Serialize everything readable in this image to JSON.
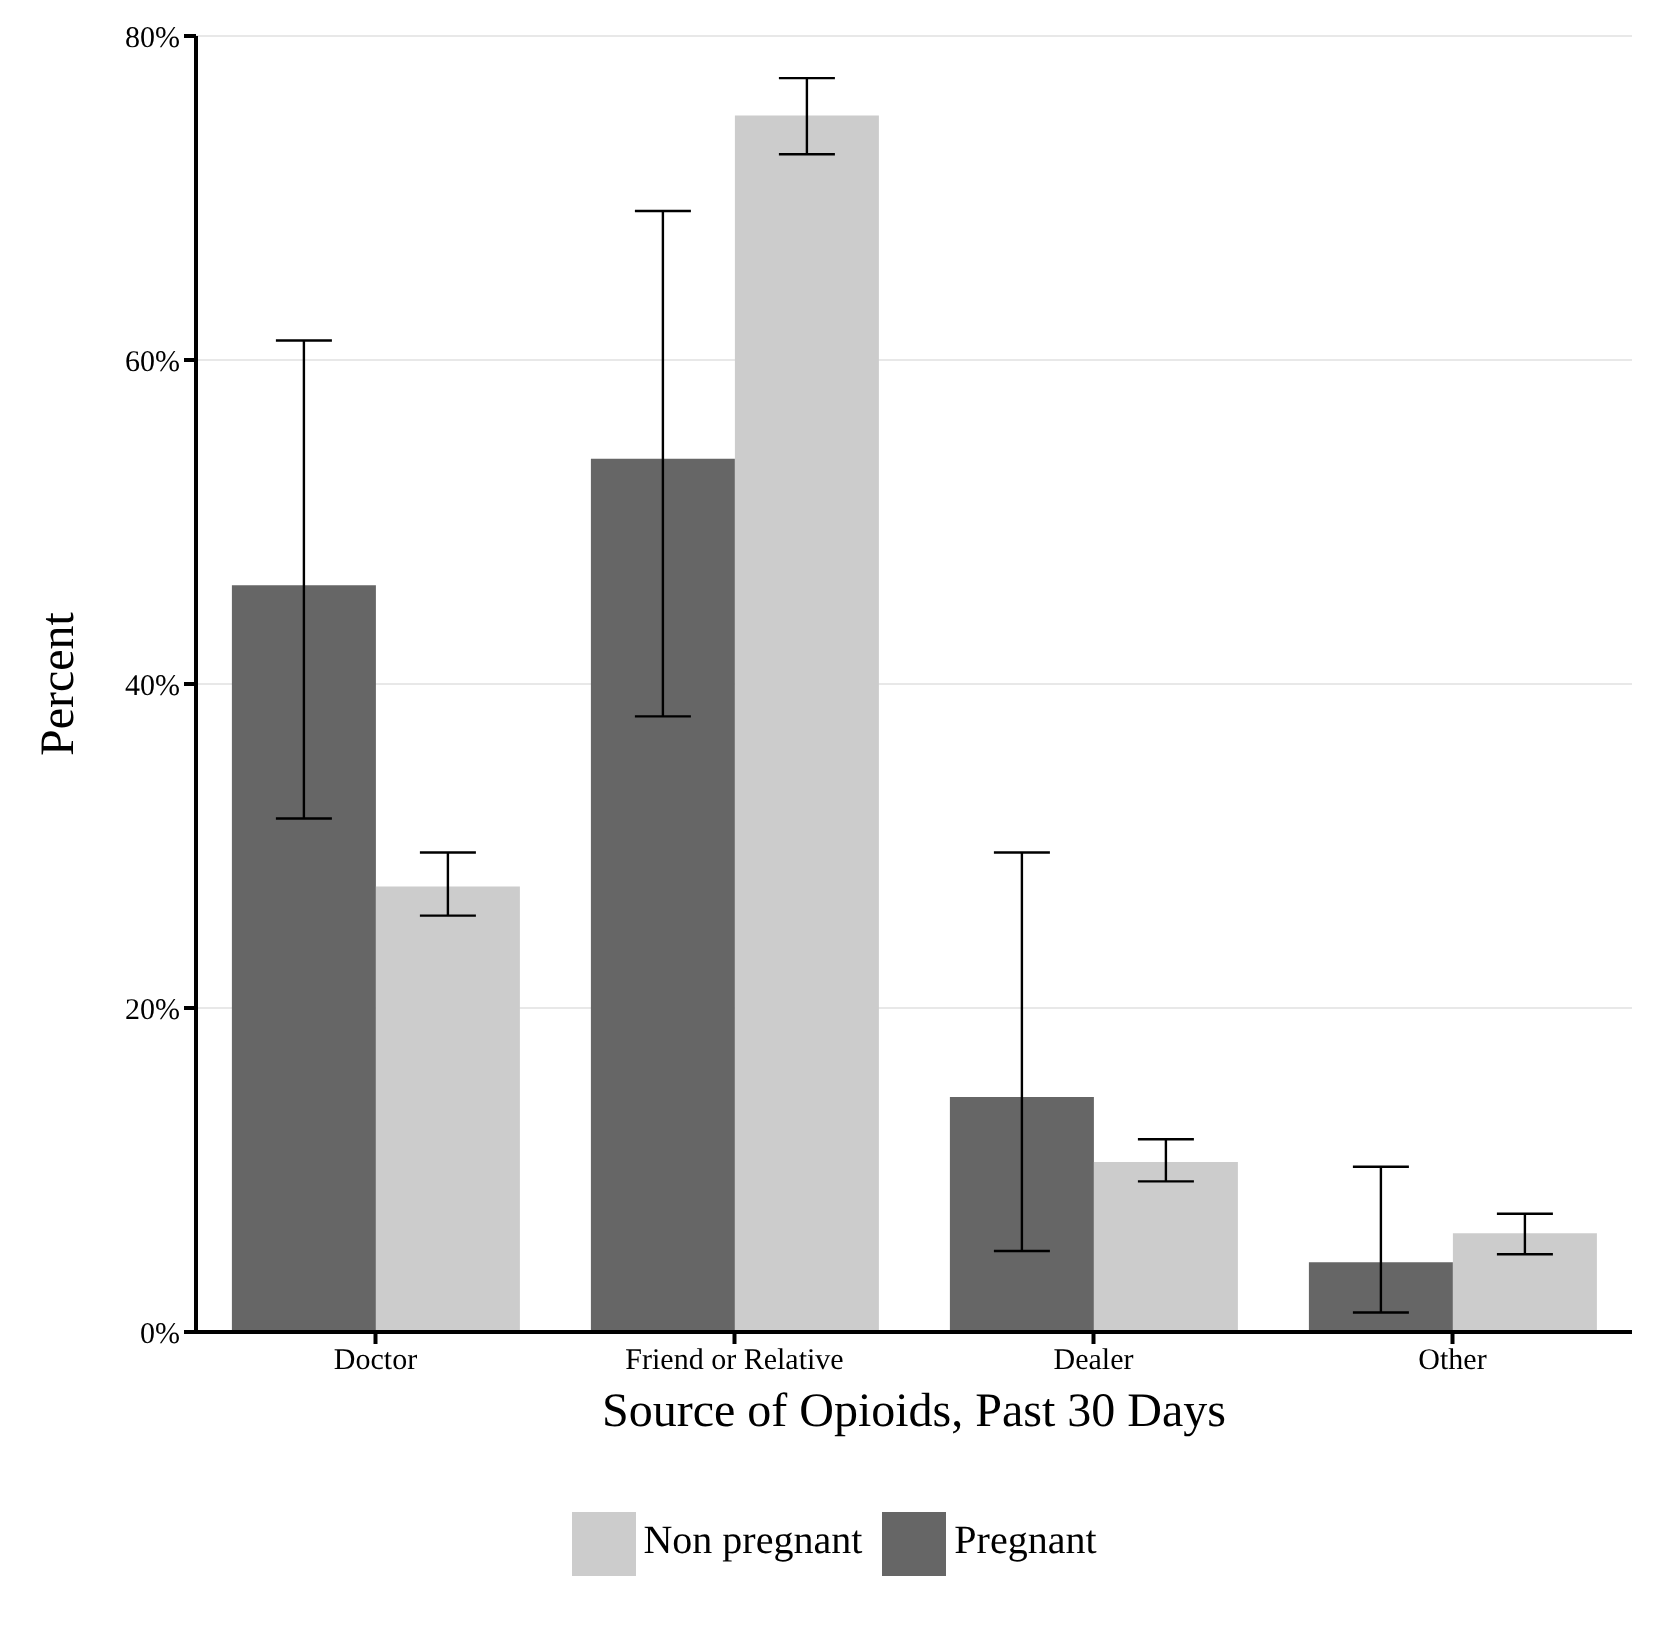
{
  "chart_data": {
    "type": "bar",
    "xlabel": "Source of Opioids, Past 30 Days",
    "ylabel": "Percent",
    "categories": [
      "Doctor",
      "Friend or Relative",
      "Dealer",
      "Other"
    ],
    "series": [
      {
        "name": "Pregnant",
        "color": "#666666",
        "values": [
          46.1,
          53.9,
          14.5,
          4.3
        ],
        "errors": [
          [
            31.7,
            61.2
          ],
          [
            38.0,
            69.2
          ],
          [
            5.0,
            29.6
          ],
          [
            1.2,
            10.2
          ]
        ]
      },
      {
        "name": "Non pregnant",
        "color": "#cccccc",
        "values": [
          27.5,
          75.1,
          10.5,
          6.1
        ],
        "errors": [
          [
            25.7,
            29.6
          ],
          [
            72.7,
            77.4
          ],
          [
            9.3,
            11.9
          ],
          [
            4.8,
            7.3
          ]
        ]
      }
    ],
    "ylim": [
      0,
      80
    ],
    "yticks": [
      {
        "value": 0,
        "label": "0%"
      },
      {
        "value": 20,
        "label": "20%"
      },
      {
        "value": 40,
        "label": "40%"
      },
      {
        "value": 60,
        "label": "60%"
      },
      {
        "value": 80,
        "label": "80%"
      }
    ],
    "grid": "y",
    "legend": "bottom"
  }
}
